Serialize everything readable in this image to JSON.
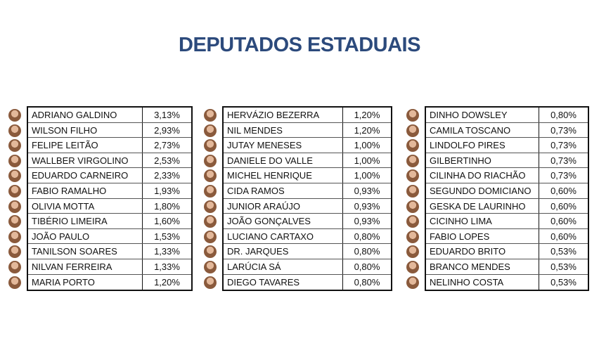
{
  "title": "DEPUTADOS ESTADUAIS",
  "tables": [
    {
      "rows": [
        [
          "ADRIANO GALDINO",
          "3,13%"
        ],
        [
          "WILSON FILHO",
          "2,93%"
        ],
        [
          "FELIPE LEITÃO",
          "2,73%"
        ],
        [
          "WALLBER VIRGOLINO",
          "2,53%"
        ],
        [
          "EDUARDO CARNEIRO",
          "2,33%"
        ],
        [
          "FABIO RAMALHO",
          "1,93%"
        ],
        [
          "OLIVIA MOTTA",
          "1,80%"
        ],
        [
          "TIBÉRIO LIMEIRA",
          "1,60%"
        ],
        [
          "JOÃO PAULO",
          "1,53%"
        ],
        [
          "TANILSON SOARES",
          "1,33%"
        ],
        [
          "NILVAN FERREIRA",
          "1,33%"
        ],
        [
          "MARIA PORTO",
          "1,20%"
        ]
      ]
    },
    {
      "rows": [
        [
          "HERVÁZIO BEZERRA",
          "1,20%"
        ],
        [
          "NIL MENDES",
          "1,20%"
        ],
        [
          "JUTAY MENESES",
          "1,00%"
        ],
        [
          "DANIELE DO VALLE",
          "1,00%"
        ],
        [
          "MICHEL HENRIQUE",
          "1,00%"
        ],
        [
          "CIDA RAMOS",
          "0,93%"
        ],
        [
          "JUNIOR ARAÚJO",
          "0,93%"
        ],
        [
          "JOÃO GONÇALVES",
          "0,93%"
        ],
        [
          "LUCIANO CARTAXO",
          "0,80%"
        ],
        [
          "DR. JARQUES",
          "0,80%"
        ],
        [
          "LARÚCIA SÁ",
          "0,80%"
        ],
        [
          "DIEGO TAVARES",
          "0,80%"
        ]
      ]
    },
    {
      "rows": [
        [
          "DINHO DOWSLEY",
          "0,80%"
        ],
        [
          "CAMILA TOSCANO",
          "0,73%"
        ],
        [
          "LINDOLFO PIRES",
          "0,73%"
        ],
        [
          "GILBERTINHO",
          "0,73%"
        ],
        [
          "CILINHA DO RIACHÃO",
          "0,73%"
        ],
        [
          "SEGUNDO DOMICIANO",
          "0,60%"
        ],
        [
          "GESKA DE LAURINHO",
          "0,60%"
        ],
        [
          "CICINHO LIMA",
          "0,60%"
        ],
        [
          "FABIO LOPES",
          "0,60%"
        ],
        [
          "EDUARDO BRITO",
          "0,53%"
        ],
        [
          "BRANCO MENDES",
          "0,53%"
        ],
        [
          "NELINHO COSTA",
          "0,53%"
        ]
      ]
    }
  ]
}
